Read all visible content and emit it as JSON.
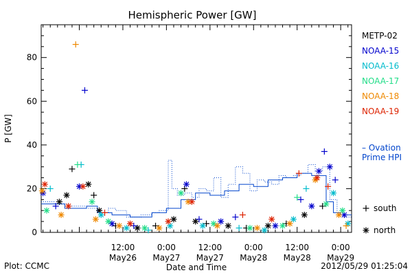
{
  "chart_data": {
    "type": "scatter",
    "title": "Hemispheric Power [GW]",
    "ylabel": "P [GW]",
    "xlabel": "Date and Time",
    "ylim": [
      0,
      95
    ],
    "xlim": [
      "2012-05-25T13:30",
      "2012-05-29T03:00"
    ],
    "yticks": [
      0,
      20,
      40,
      60,
      80
    ],
    "xticks": [
      {
        "x": "2012-05-26T12:00",
        "time": "12:00",
        "date": "May26"
      },
      {
        "x": "2012-05-27T00:00",
        "time": "0:00",
        "date": "May27"
      },
      {
        "x": "2012-05-27T12:00",
        "time": "12:00",
        "date": "May27"
      },
      {
        "x": "2012-05-28T00:00",
        "time": "0:00",
        "date": "May28"
      },
      {
        "x": "2012-05-28T12:00",
        "time": "12:00",
        "date": "May28"
      },
      {
        "x": "2012-05-29T00:00",
        "time": "0:00",
        "date": "May29"
      }
    ],
    "series": [
      {
        "name": "METP-02",
        "color": "#000000",
        "points": [
          {
            "x": "2012-05-25T18:30",
            "y": 14,
            "m": "*"
          },
          {
            "x": "2012-05-25T20:30",
            "y": 17,
            "m": "*"
          },
          {
            "x": "2012-05-25T22:00",
            "y": 29,
            "m": "+"
          },
          {
            "x": "2012-05-26T02:30",
            "y": 22,
            "m": "*"
          },
          {
            "x": "2012-05-26T04:00",
            "y": 17,
            "m": "+"
          },
          {
            "x": "2012-05-26T05:30",
            "y": 10,
            "m": "*"
          },
          {
            "x": "2012-05-26T10:00",
            "y": 3,
            "m": "+"
          },
          {
            "x": "2012-05-26T16:00",
            "y": 2,
            "m": "*"
          },
          {
            "x": "2012-05-26T21:00",
            "y": 3,
            "m": "+"
          },
          {
            "x": "2012-05-27T02:00",
            "y": 6,
            "m": "*"
          },
          {
            "x": "2012-05-27T05:00",
            "y": 20,
            "m": "+"
          },
          {
            "x": "2012-05-27T08:00",
            "y": 5,
            "m": "*"
          },
          {
            "x": "2012-05-27T11:00",
            "y": 4,
            "m": "+"
          },
          {
            "x": "2012-05-27T17:00",
            "y": 3,
            "m": "*"
          },
          {
            "x": "2012-05-27T22:00",
            "y": 2,
            "m": "+"
          },
          {
            "x": "2012-05-28T04:00",
            "y": 3,
            "m": "*"
          },
          {
            "x": "2012-05-28T09:00",
            "y": 4,
            "m": "+"
          },
          {
            "x": "2012-05-28T14:00",
            "y": 8,
            "m": "*"
          },
          {
            "x": "2012-05-28T19:00",
            "y": 12,
            "m": "+"
          }
        ]
      },
      {
        "name": "NOAA-15",
        "color": "#0000cc",
        "points": [
          {
            "x": "2012-05-25T14:00",
            "y": 18,
            "m": "*"
          },
          {
            "x": "2012-05-25T17:30",
            "y": 12,
            "m": "+"
          },
          {
            "x": "2012-05-26T01:30",
            "y": 65,
            "m": "+"
          },
          {
            "x": "2012-05-26T00:00",
            "y": 21,
            "m": "*"
          },
          {
            "x": "2012-05-26T09:00",
            "y": 4,
            "m": "*"
          },
          {
            "x": "2012-05-26T15:00",
            "y": 3,
            "m": "+"
          },
          {
            "x": "2012-05-27T05:30",
            "y": 22,
            "m": "*"
          },
          {
            "x": "2012-05-27T09:00",
            "y": 6,
            "m": "+"
          },
          {
            "x": "2012-05-27T15:00",
            "y": 5,
            "m": "*"
          },
          {
            "x": "2012-05-27T19:00",
            "y": 7,
            "m": "+"
          },
          {
            "x": "2012-05-28T06:00",
            "y": 3,
            "m": "*"
          },
          {
            "x": "2012-05-28T13:00",
            "y": 15,
            "m": "+"
          },
          {
            "x": "2012-05-28T16:00",
            "y": 12,
            "m": "*"
          },
          {
            "x": "2012-05-28T18:00",
            "y": 28,
            "m": "*"
          },
          {
            "x": "2012-05-28T19:30",
            "y": 37,
            "m": "+"
          },
          {
            "x": "2012-05-28T21:00",
            "y": 30,
            "m": "*"
          },
          {
            "x": "2012-05-28T22:30",
            "y": 24,
            "m": "+"
          },
          {
            "x": "2012-05-29T01:00",
            "y": 8,
            "m": "*"
          }
        ]
      },
      {
        "name": "NOAA-16",
        "color": "#00bbcc",
        "points": [
          {
            "x": "2012-05-25T16:00",
            "y": 20,
            "m": "+"
          },
          {
            "x": "2012-05-26T00:30",
            "y": 31,
            "m": "+"
          },
          {
            "x": "2012-05-26T06:00",
            "y": 8,
            "m": "*"
          },
          {
            "x": "2012-05-26T13:00",
            "y": 2,
            "m": "*"
          },
          {
            "x": "2012-05-26T19:00",
            "y": 1,
            "m": "+"
          },
          {
            "x": "2012-05-27T01:00",
            "y": 3,
            "m": "*"
          },
          {
            "x": "2012-05-27T10:00",
            "y": 3,
            "m": "*"
          },
          {
            "x": "2012-05-27T20:00",
            "y": 2,
            "m": "+"
          },
          {
            "x": "2012-05-28T03:00",
            "y": 1,
            "m": "*"
          },
          {
            "x": "2012-05-28T11:00",
            "y": 6,
            "m": "*"
          },
          {
            "x": "2012-05-28T14:30",
            "y": 20,
            "m": "+"
          },
          {
            "x": "2012-05-28T22:00",
            "y": 18,
            "m": "*"
          },
          {
            "x": "2012-05-29T02:00",
            "y": 4,
            "m": "*"
          }
        ]
      },
      {
        "name": "NOAA-17",
        "color": "#22dd88",
        "points": [
          {
            "x": "2012-05-25T15:00",
            "y": 10,
            "m": "*"
          },
          {
            "x": "2012-05-25T23:30",
            "y": 31,
            "m": "+"
          },
          {
            "x": "2012-05-26T03:30",
            "y": 14,
            "m": "*"
          },
          {
            "x": "2012-05-26T08:00",
            "y": 5,
            "m": "*"
          },
          {
            "x": "2012-05-26T18:00",
            "y": 2,
            "m": "*"
          },
          {
            "x": "2012-05-27T04:00",
            "y": 18,
            "m": "*"
          },
          {
            "x": "2012-05-27T13:00",
            "y": 4,
            "m": "*"
          },
          {
            "x": "2012-05-27T23:00",
            "y": 2,
            "m": "*"
          },
          {
            "x": "2012-05-28T08:00",
            "y": 3,
            "m": "*"
          },
          {
            "x": "2012-05-28T12:00",
            "y": 16,
            "m": "+"
          },
          {
            "x": "2012-05-28T20:00",
            "y": 13,
            "m": "*"
          },
          {
            "x": "2012-05-29T00:30",
            "y": 10,
            "m": "*"
          }
        ]
      },
      {
        "name": "NOAA-18",
        "color": "#ee8800",
        "points": [
          {
            "x": "2012-05-25T13:45",
            "y": 19,
            "m": "*"
          },
          {
            "x": "2012-05-25T19:00",
            "y": 8,
            "m": "*"
          },
          {
            "x": "2012-05-25T23:00",
            "y": 86,
            "m": "+"
          },
          {
            "x": "2012-05-26T04:30",
            "y": 6,
            "m": "*"
          },
          {
            "x": "2012-05-26T11:00",
            "y": 3,
            "m": "*"
          },
          {
            "x": "2012-05-26T22:00",
            "y": 2,
            "m": "*"
          },
          {
            "x": "2012-05-27T06:00",
            "y": 14,
            "m": "*"
          },
          {
            "x": "2012-05-27T14:00",
            "y": 3,
            "m": "*"
          },
          {
            "x": "2012-05-28T01:00",
            "y": 2,
            "m": "*"
          },
          {
            "x": "2012-05-28T10:00",
            "y": 4,
            "m": "*"
          },
          {
            "x": "2012-05-28T17:00",
            "y": 24,
            "m": "*"
          },
          {
            "x": "2012-05-28T23:30",
            "y": 8,
            "m": "*"
          },
          {
            "x": "2012-05-29T01:30",
            "y": 3,
            "m": "+"
          }
        ]
      },
      {
        "name": "NOAA-19",
        "color": "#dd2200",
        "points": [
          {
            "x": "2012-05-25T14:30",
            "y": 22,
            "m": "*"
          },
          {
            "x": "2012-05-25T21:00",
            "y": 12,
            "m": "*"
          },
          {
            "x": "2012-05-26T01:00",
            "y": 21,
            "m": "*"
          },
          {
            "x": "2012-05-26T07:00",
            "y": 9,
            "m": "+"
          },
          {
            "x": "2012-05-26T14:00",
            "y": 4,
            "m": "*"
          },
          {
            "x": "2012-05-27T00:30",
            "y": 5,
            "m": "*"
          },
          {
            "x": "2012-05-27T07:00",
            "y": 14,
            "m": "*"
          },
          {
            "x": "2012-05-27T21:00",
            "y": 8,
            "m": "+"
          },
          {
            "x": "2012-05-28T05:00",
            "y": 6,
            "m": "*"
          },
          {
            "x": "2012-05-28T12:30",
            "y": 27,
            "m": "+"
          },
          {
            "x": "2012-05-28T17:30",
            "y": 25,
            "m": "*"
          },
          {
            "x": "2012-05-28T20:30",
            "y": 21,
            "m": "+"
          }
        ]
      }
    ],
    "ovation": {
      "name": [
        "– Ovation",
        "Prime HPI"
      ],
      "color": "#0044cc",
      "steps": [
        {
          "x": "2012-05-25T13:30",
          "y": 14
        },
        {
          "x": "2012-05-25T17:00",
          "y": 13
        },
        {
          "x": "2012-05-25T21:00",
          "y": 12
        },
        {
          "x": "2012-05-26T02:00",
          "y": 11
        },
        {
          "x": "2012-05-26T05:00",
          "y": 9
        },
        {
          "x": "2012-05-26T08:00",
          "y": 11
        },
        {
          "x": "2012-05-26T10:00",
          "y": 10
        },
        {
          "x": "2012-05-26T13:00",
          "y": 7
        },
        {
          "x": "2012-05-26T17:00",
          "y": 8
        },
        {
          "x": "2012-05-26T20:00",
          "y": 9
        },
        {
          "x": "2012-05-26T22:00",
          "y": 10
        },
        {
          "x": "2012-05-27T00:30",
          "y": 33
        },
        {
          "x": "2012-05-27T01:30",
          "y": 20
        },
        {
          "x": "2012-05-27T03:00",
          "y": 17
        },
        {
          "x": "2012-05-27T05:00",
          "y": 18
        },
        {
          "x": "2012-05-27T07:00",
          "y": 16
        },
        {
          "x": "2012-05-27T09:00",
          "y": 20
        },
        {
          "x": "2012-05-27T11:00",
          "y": 19
        },
        {
          "x": "2012-05-27T13:00",
          "y": 25
        },
        {
          "x": "2012-05-27T15:00",
          "y": 16
        },
        {
          "x": "2012-05-27T17:00",
          "y": 22
        },
        {
          "x": "2012-05-27T19:00",
          "y": 30
        },
        {
          "x": "2012-05-27T21:00",
          "y": 27
        },
        {
          "x": "2012-05-27T23:00",
          "y": 19
        },
        {
          "x": "2012-05-28T01:00",
          "y": 24
        },
        {
          "x": "2012-05-28T03:00",
          "y": 23
        },
        {
          "x": "2012-05-28T05:00",
          "y": 22
        },
        {
          "x": "2012-05-28T07:00",
          "y": 26
        },
        {
          "x": "2012-05-28T09:00",
          "y": 25
        },
        {
          "x": "2012-05-28T11:00",
          "y": 26
        },
        {
          "x": "2012-05-28T13:00",
          "y": 27
        },
        {
          "x": "2012-05-28T15:00",
          "y": 31
        },
        {
          "x": "2012-05-28T17:00",
          "y": 28
        },
        {
          "x": "2012-05-28T19:00",
          "y": 30
        },
        {
          "x": "2012-05-28T21:00",
          "y": 15
        },
        {
          "x": "2012-05-28T23:00",
          "y": 9
        },
        {
          "x": "2012-05-29T01:00",
          "y": 7
        },
        {
          "x": "2012-05-29T03:00",
          "y": 7
        }
      ],
      "solid_steps": [
        {
          "x": "2012-05-25T13:30",
          "y": 13
        },
        {
          "x": "2012-05-25T20:00",
          "y": 11
        },
        {
          "x": "2012-05-26T02:00",
          "y": 12
        },
        {
          "x": "2012-05-26T05:00",
          "y": 9
        },
        {
          "x": "2012-05-26T09:00",
          "y": 8
        },
        {
          "x": "2012-05-26T14:00",
          "y": 7
        },
        {
          "x": "2012-05-26T20:00",
          "y": 9
        },
        {
          "x": "2012-05-27T00:00",
          "y": 11
        },
        {
          "x": "2012-05-27T04:00",
          "y": 15
        },
        {
          "x": "2012-05-27T08:00",
          "y": 18
        },
        {
          "x": "2012-05-27T12:00",
          "y": 17
        },
        {
          "x": "2012-05-27T16:00",
          "y": 19
        },
        {
          "x": "2012-05-27T20:00",
          "y": 22
        },
        {
          "x": "2012-05-28T00:00",
          "y": 21
        },
        {
          "x": "2012-05-28T04:00",
          "y": 24
        },
        {
          "x": "2012-05-28T08:00",
          "y": 25
        },
        {
          "x": "2012-05-28T12:00",
          "y": 27
        },
        {
          "x": "2012-05-28T16:00",
          "y": 26
        },
        {
          "x": "2012-05-28T20:00",
          "y": 14
        },
        {
          "x": "2012-05-28T22:00",
          "y": 9
        },
        {
          "x": "2012-05-29T00:00",
          "y": 8
        },
        {
          "x": "2012-05-29T03:00",
          "y": 8
        }
      ]
    },
    "marker_legend": [
      {
        "symbol": "+",
        "label": "south"
      },
      {
        "symbol": "*",
        "label": "north"
      }
    ],
    "grid": false
  },
  "footer": {
    "left": "Plot: CCMC",
    "right": "2012/05/29 01:25:04"
  }
}
